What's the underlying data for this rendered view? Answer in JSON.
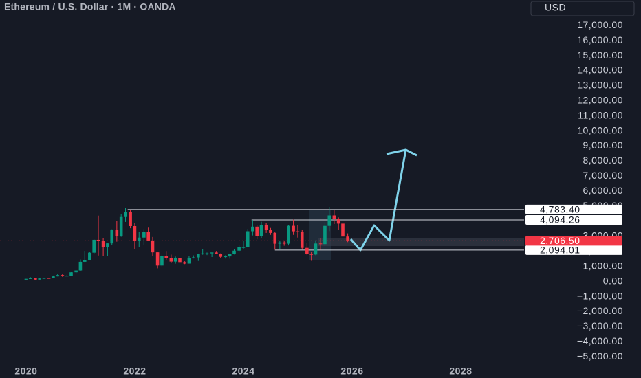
{
  "chart_data": {
    "type": "candlestick",
    "title": "Ethereum / U.S. Dollar · 1M · OANDA",
    "currency": "USD",
    "up_color": "#089981",
    "down_color": "#f23645",
    "grid": false,
    "x": [
      2020,
      2020.08,
      2020.17,
      2020.25,
      2020.33,
      2020.42,
      2020.5,
      2020.58,
      2020.67,
      2020.75,
      2020.83,
      2020.92,
      2021,
      2021.08,
      2021.17,
      2021.25,
      2021.33,
      2021.42,
      2021.5,
      2021.58,
      2021.67,
      2021.75,
      2021.83,
      2021.92,
      2022,
      2022.08,
      2022.17,
      2022.25,
      2022.33,
      2022.42,
      2022.5,
      2022.58,
      2022.67,
      2022.75,
      2022.83,
      2022.92,
      2023,
      2023.08,
      2023.17,
      2023.25,
      2023.33,
      2023.42,
      2023.5,
      2023.58,
      2023.67,
      2023.75,
      2023.83,
      2023.92,
      2024,
      2024.08,
      2024.17,
      2024.25,
      2024.33,
      2024.42,
      2024.5,
      2024.58,
      2024.67,
      2024.75,
      2024.83,
      2024.92,
      2025,
      2025.08,
      2025.17,
      2025.25,
      2025.33,
      2025.42,
      2025.5,
      2025.58,
      2025.67,
      2025.75,
      2025.83,
      2025.92
    ],
    "open": [
      130,
      180,
      218,
      133,
      206,
      231,
      225,
      345,
      434,
      360,
      386,
      616,
      737,
      1314,
      1417,
      1918,
      2773,
      2707,
      2275,
      2536,
      3430,
      3001,
      4288,
      4630,
      3683,
      2688,
      2919,
      3282,
      2727,
      1942,
      1067,
      1679,
      1553,
      1328,
      1572,
      1295,
      1196,
      1585,
      1605,
      1822,
      1870,
      1874,
      1934,
      1857,
      1645,
      1671,
      1815,
      2052,
      2282,
      2283,
      3341,
      3646,
      3015,
      3761,
      3432,
      3231,
      2513,
      2603,
      2517,
      3703,
      3337,
      3300,
      2237,
      1822,
      1794,
      2528,
      2486,
      3697,
      4391,
      4145,
      3848,
      2990
    ],
    "high": [
      185,
      290,
      240,
      230,
      245,
      250,
      400,
      490,
      490,
      420,
      620,
      750,
      1470,
      2040,
      1950,
      2800,
      4380,
      2900,
      2560,
      3470,
      4030,
      4460,
      4870,
      4780,
      3900,
      3290,
      3480,
      3580,
      2960,
      1970,
      1790,
      2030,
      1790,
      1660,
      1680,
      1350,
      1680,
      1740,
      1860,
      2140,
      1930,
      1930,
      2030,
      1870,
      1750,
      1860,
      2140,
      2410,
      2720,
      3490,
      4090,
      3730,
      3970,
      3890,
      3560,
      3280,
      2730,
      2730,
      3740,
      4110,
      3750,
      3450,
      2550,
      1960,
      2740,
      2880,
      3940,
      4960,
      4770,
      4260,
      4000,
      3200
    ],
    "low": [
      125,
      175,
      90,
      130,
      190,
      215,
      225,
      340,
      310,
      350,
      380,
      560,
      715,
      1300,
      1540,
      1860,
      1730,
      1700,
      1720,
      2450,
      2650,
      2970,
      3960,
      3540,
      2160,
      2300,
      2450,
      2700,
      1700,
      880,
      1000,
      1420,
      1220,
      1190,
      1070,
      1160,
      1190,
      1530,
      1370,
      1780,
      1760,
      1630,
      1830,
      1550,
      1530,
      1520,
      1800,
      2010,
      2170,
      2270,
      3060,
      2810,
      2870,
      3230,
      3100,
      2120,
      2150,
      2380,
      2400,
      3100,
      2920,
      2120,
      1760,
      1380,
      1750,
      2110,
      2370,
      3350,
      3820,
      3440,
      2620,
      2620
    ],
    "close": [
      180,
      218,
      133,
      206,
      231,
      225,
      345,
      434,
      360,
      386,
      616,
      737,
      1314,
      1417,
      1918,
      2773,
      2707,
      2275,
      2536,
      3430,
      3001,
      4288,
      4630,
      3683,
      2688,
      2919,
      3282,
      2727,
      1942,
      1067,
      1679,
      1553,
      1328,
      1572,
      1295,
      1196,
      1585,
      1605,
      1822,
      1870,
      1874,
      1934,
      1857,
      1645,
      1671,
      1815,
      2052,
      2282,
      2283,
      3341,
      3646,
      3015,
      3761,
      3432,
      3231,
      2513,
      2603,
      2517,
      3703,
      3337,
      3300,
      2237,
      1822,
      1794,
      2528,
      2486,
      3697,
      4391,
      4145,
      3848,
      2990,
      2706.5
    ],
    "xlim": [
      2019.52,
      2029.14
    ],
    "xticks": [
      2020,
      2022,
      2024,
      2026,
      2028
    ],
    "ylim": [
      -5400,
      18700
    ],
    "yticks": [
      {
        "value": 17000,
        "label": "17,000.00"
      },
      {
        "value": 16000,
        "label": "16,000.00"
      },
      {
        "value": 15000,
        "label": "15,000.00"
      },
      {
        "value": 14000,
        "label": "14,000.00"
      },
      {
        "value": 13000,
        "label": "13,000.00"
      },
      {
        "value": 12000,
        "label": "12,000.00"
      },
      {
        "value": 11000,
        "label": "11,000.00"
      },
      {
        "value": 10000,
        "label": "10,000.00"
      },
      {
        "value": 9000,
        "label": "9,000.00"
      },
      {
        "value": 8000,
        "label": "8,000.00"
      },
      {
        "value": 7000,
        "label": "7,000.00"
      },
      {
        "value": 6000,
        "label": "6,000.00"
      },
      {
        "value": 5000,
        "label": "5,000.00"
      },
      {
        "value": 4000,
        "label": "4,000.00"
      },
      {
        "value": 3000,
        "label": "3,000.00"
      },
      {
        "value": 2000,
        "label": "2,000.00"
      },
      {
        "value": 1000,
        "label": "1,000.00"
      },
      {
        "value": 0,
        "label": "0.00"
      },
      {
        "value": -1000,
        "label": "−1,000.00"
      },
      {
        "value": -2000,
        "label": "−2,000.00"
      },
      {
        "value": -3000,
        "label": "−3,000.00"
      },
      {
        "value": -4000,
        "label": "−4,000.00"
      },
      {
        "value": -5000,
        "label": "−5,000.00"
      }
    ],
    "levels": [
      {
        "value": 4783.4,
        "label": "4,783.40",
        "from": 2021.87
      },
      {
        "value": 4094.26,
        "label": "4,094.26",
        "from": 2024.15
      },
      {
        "value": 2094.01,
        "label": "2,094.01",
        "from": 2024.58
      }
    ],
    "last_price": {
      "value": 2706.5,
      "label": "2,706.50"
    }
  }
}
